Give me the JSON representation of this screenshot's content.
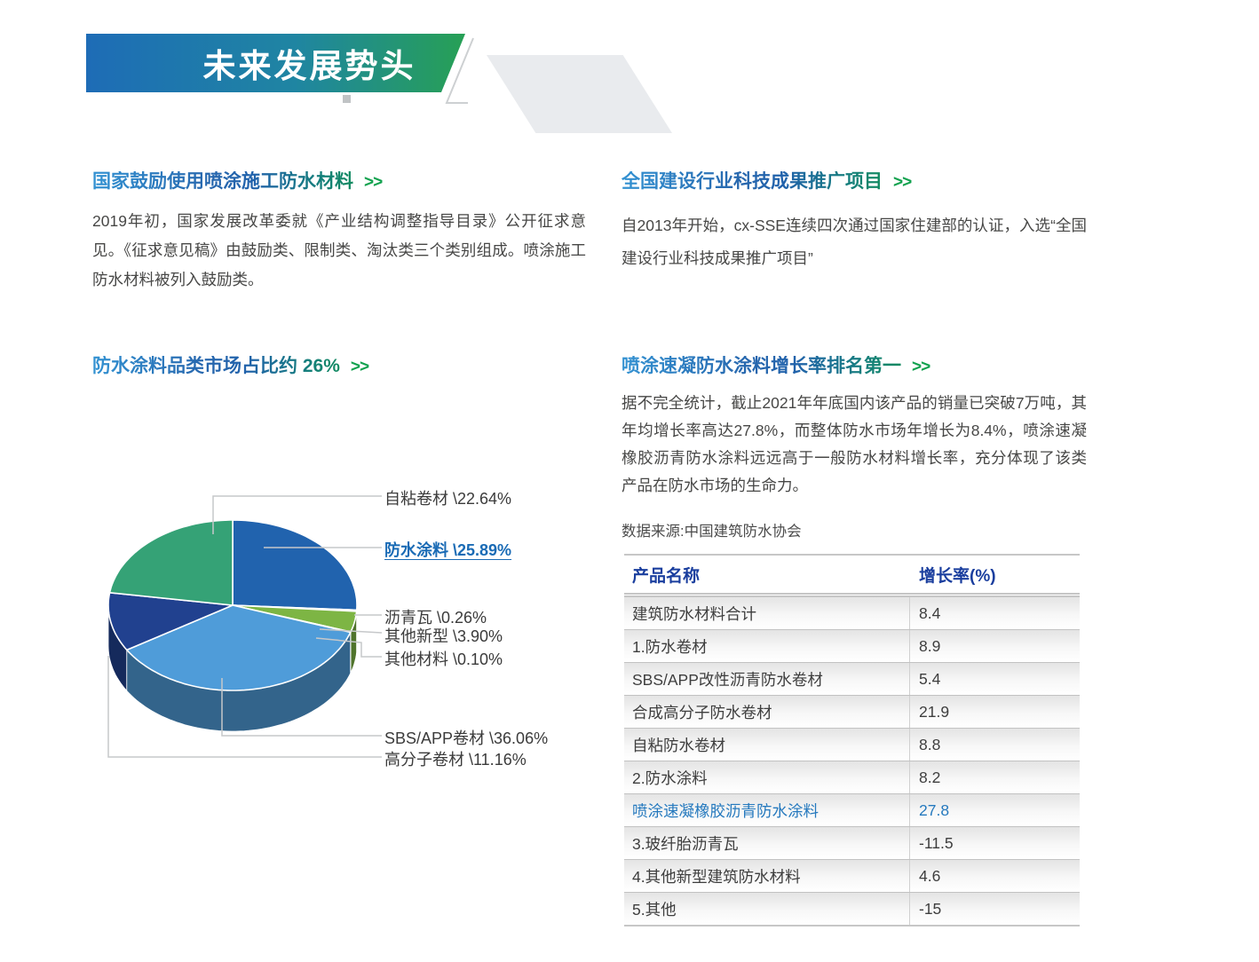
{
  "banner": {
    "title": "未来发展势头"
  },
  "sections": {
    "s1": {
      "heading": "国家鼓励使用喷涂施工防水材料",
      "arrows": ">>",
      "body": "2019年初，国家发展改革委就《产业结构调整指导目录》公开征求意见。《征求意见稿》由鼓励类、限制类、淘汰类三个类别组成。喷涂施工防水材料被列入鼓励类。"
    },
    "s2": {
      "heading": "全国建设行业科技成果推广项目",
      "arrows": ">>",
      "body": "自2013年开始，cx-SSE连续四次通过国家住建部的认证，入选“全国建设行业科技成果推广项目”"
    },
    "s3": {
      "heading": "防水涂料品类市场占比约 26%",
      "arrows": ">>"
    },
    "s4": {
      "heading": "喷涂速凝防水涂料增长率排名第一",
      "arrows": ">>",
      "body": "据不完全统计，截止2021年年底国内该产品的销量已突破7万吨，其年均增长率高达27.8%，而整体防水市场年增长为8.4%，喷涂速凝橡胶沥青防水涂料远远高于一般防水材料增长率，充分体现了该类产品在防水市场的生命力。",
      "source": "数据来源:中国建筑防水协会"
    }
  },
  "chart_data": {
    "type": "pie",
    "style": "3d",
    "title": "防水涂料品类市场占比约 26%",
    "unit": "%",
    "start_angle_deg": 0,
    "direction": "clockwise",
    "slices": [
      {
        "name": "防水涂料",
        "value": 25.89,
        "color": "#2163ae",
        "display": "防水涂料 \\25.89%",
        "emphasis": true
      },
      {
        "name": "沥青瓦",
        "value": 0.26,
        "color": "#f49d4a",
        "display": "沥青瓦 \\0.26%"
      },
      {
        "name": "其他新型",
        "value": 3.9,
        "color": "#7db544",
        "display": "其他新型 \\3.90%"
      },
      {
        "name": "其他材料",
        "value": 0.1,
        "color": "#c8cbd0",
        "display": "其他材料 \\0.10%"
      },
      {
        "name": "SBS/APP卷材",
        "value": 36.06,
        "color": "#4f9cd9",
        "display": "SBS/APP卷材 \\36.06%"
      },
      {
        "name": "高分子卷材",
        "value": 11.16,
        "color": "#21418f",
        "display": "高分子卷材 \\11.16%"
      },
      {
        "name": "自粘卷材",
        "value": 22.64,
        "color": "#35a276",
        "display": "自粘卷材 \\22.64%"
      }
    ]
  },
  "table": {
    "headers": [
      "产品名称",
      "增长率(%)"
    ],
    "rows": [
      {
        "name": "建筑防水材料合计",
        "value": "8.4",
        "highlight": false
      },
      {
        "name": "1.防水卷材",
        "value": "8.9",
        "highlight": false
      },
      {
        "name": "SBS/APP改性沥青防水卷材",
        "value": "5.4",
        "highlight": false
      },
      {
        "name": "合成高分子防水卷材",
        "value": "21.9",
        "highlight": false
      },
      {
        "name": "自粘防水卷材",
        "value": "8.8",
        "highlight": false
      },
      {
        "name": "2.防水涂料",
        "value": "8.2",
        "highlight": false
      },
      {
        "name": "喷涂速凝橡胶沥青防水涂料",
        "value": "27.8",
        "highlight": true
      },
      {
        "name": "3.玻纤胎沥青瓦",
        "value": "-11.5",
        "highlight": false
      },
      {
        "name": "4.其他新型建筑防水材料",
        "value": "4.6",
        "highlight": false
      },
      {
        "name": "5.其他",
        "value": "-15",
        "highlight": false
      }
    ]
  }
}
